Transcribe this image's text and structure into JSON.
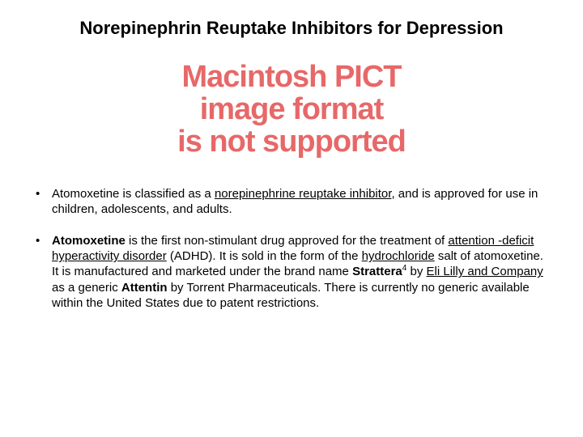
{
  "title": "Norepinephrin Reuptake Inhibitors for Depression",
  "placeholder": {
    "line1": "Macintosh PICT",
    "line2": "image format",
    "line3": "is not supported",
    "color": "#e76868",
    "fontsize": 38,
    "font_weight": 900
  },
  "bullets": [
    {
      "runs": [
        {
          "t": "Atomoxetine is classified as a "
        },
        {
          "t": "norepinephrine reuptake inhibitor",
          "u": true
        },
        {
          "t": ", and is approved for use in children, adolescents, and adults."
        }
      ]
    },
    {
      "runs": [
        {
          "t": "Atomoxetine",
          "b": true
        },
        {
          "t": " is the first non-stimulant drug approved for the treatment of "
        },
        {
          "t": "attention -deficit hyperactivity disorder",
          "u": true
        },
        {
          "t": " (ADHD). It is sold in the form of the "
        },
        {
          "t": "hydrochloride",
          "u": true
        },
        {
          "t": " salt of atomoxetine. It is manufactured and marketed under the brand name "
        },
        {
          "t": "Strattera",
          "b": true
        },
        {
          "t": "4",
          "sup": true
        },
        {
          "t": " by "
        },
        {
          "t": "Eli Lilly and Company",
          "u": true
        },
        {
          "t": " as a generic "
        },
        {
          "t": "Attentin",
          "b": true
        },
        {
          "t": " by Torrent Pharmaceuticals. There is currently no generic available within the United States due to patent restrictions."
        }
      ]
    }
  ],
  "style": {
    "background_color": "#ffffff",
    "title_fontsize": 22,
    "body_fontsize": 15,
    "text_color": "#000000",
    "slide_width": 720,
    "slide_height": 540
  }
}
